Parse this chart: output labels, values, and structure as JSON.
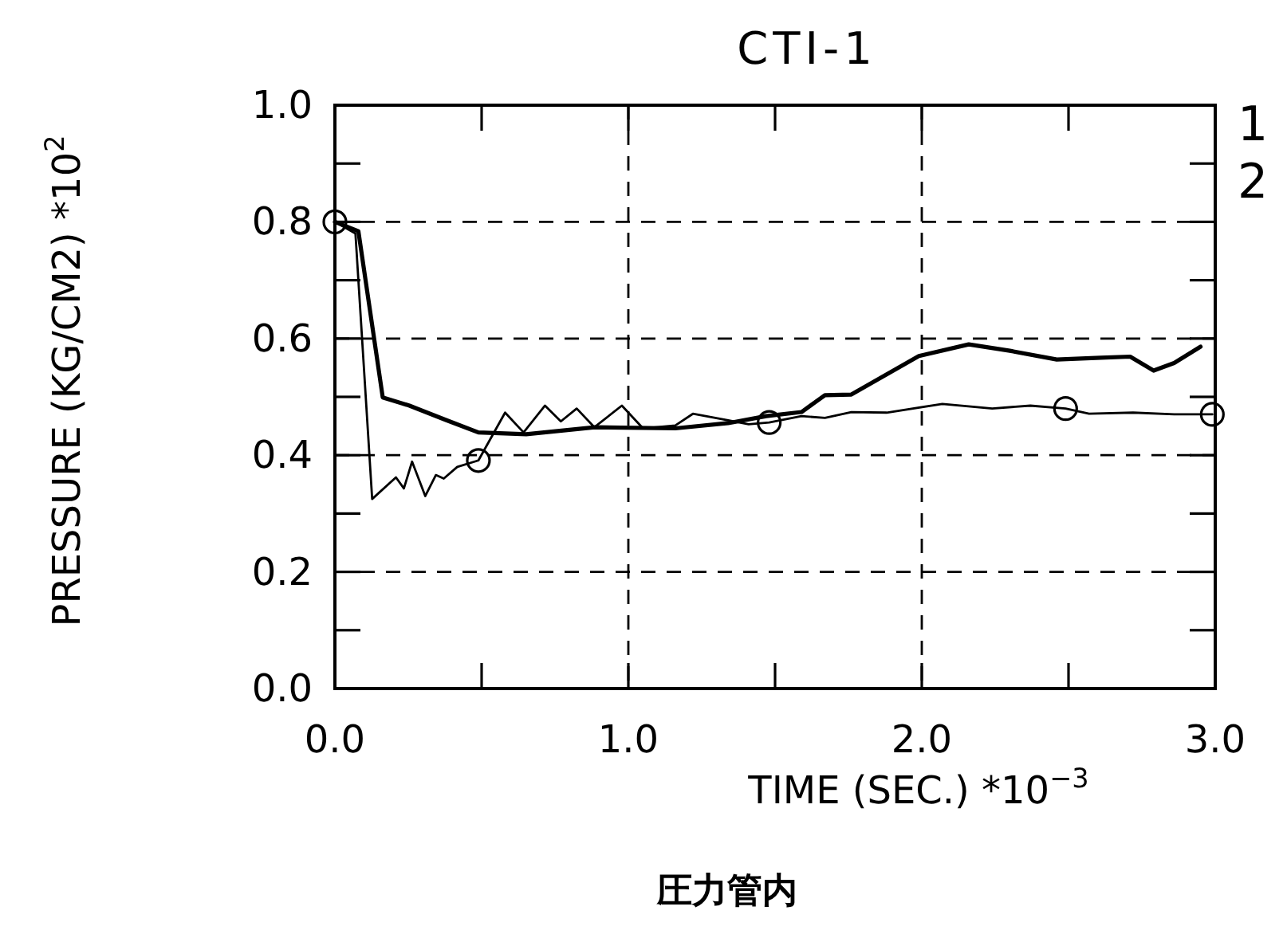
{
  "chart_data": {
    "type": "line",
    "title": "CTI-1",
    "xlabel": "TIME (SEC.) *10$^{−3}$",
    "ylabel": "PRESSURE (KG/CM2) *10$^{2}$",
    "annotations": [
      "圧力管内"
    ],
    "xlim": [
      0,
      3
    ],
    "ylim": [
      0,
      1
    ],
    "xticks": [
      {
        "value": 0,
        "label": "0.0"
      },
      {
        "value": 0.5,
        "label": null
      },
      {
        "value": 1,
        "label": "1.0"
      },
      {
        "value": 1.5,
        "label": null
      },
      {
        "value": 2,
        "label": "2.0"
      },
      {
        "value": 2.5,
        "label": null
      },
      {
        "value": 3,
        "label": "3.0"
      }
    ],
    "yticks": [
      {
        "value": 0,
        "label": "0.0"
      },
      {
        "value": 0.1,
        "label": null
      },
      {
        "value": 0.2,
        "label": "0.2"
      },
      {
        "value": 0.3,
        "label": null
      },
      {
        "value": 0.4,
        "label": "0.4"
      },
      {
        "value": 0.5,
        "label": null
      },
      {
        "value": 0.6,
        "label": "0.6"
      },
      {
        "value": 0.7,
        "label": null
      },
      {
        "value": 0.8,
        "label": "0.8"
      },
      {
        "value": 0.9,
        "label": null
      },
      {
        "value": 1,
        "label": "1.0"
      }
    ],
    "grid": true,
    "legend": "right",
    "line_style": "solid",
    "series": [
      {
        "name": "1",
        "color": "#000000",
        "x": [
          0,
          0.08,
          0.163,
          0.254,
          0.38,
          0.489,
          0.652,
          0.886,
          1.16,
          1.34,
          1.47,
          1.59,
          1.67,
          1.76,
          1.99,
          2.16,
          2.3,
          2.46,
          2.61,
          2.71,
          2.79,
          2.86,
          2.95
        ],
        "values": [
          0.8,
          0.784,
          0.499,
          0.485,
          0.46,
          0.439,
          0.436,
          0.448,
          0.446,
          0.455,
          0.467,
          0.474,
          0.503,
          0.504,
          0.57,
          0.59,
          0.579,
          0.564,
          0.567,
          0.569,
          0.545,
          0.558,
          0.586
        ]
      },
      {
        "name": "2",
        "color": "#000000",
        "x": [
          0,
          0.07,
          0.127,
          0.208,
          0.235,
          0.263,
          0.308,
          0.344,
          0.371,
          0.417,
          0.489,
          0.58,
          0.643,
          0.716,
          0.77,
          0.824,
          0.884,
          0.978,
          1.05,
          1.16,
          1.22,
          1.34,
          1.41,
          1.48,
          1.59,
          1.67,
          1.76,
          1.88,
          2.07,
          2.24,
          2.37,
          2.49,
          2.57,
          2.72,
          2.86,
          2.99
        ],
        "values": [
          0.8,
          0.78,
          0.325,
          0.362,
          0.343,
          0.389,
          0.33,
          0.366,
          0.36,
          0.38,
          0.391,
          0.473,
          0.439,
          0.485,
          0.458,
          0.48,
          0.448,
          0.485,
          0.446,
          0.451,
          0.471,
          0.46,
          0.453,
          0.456,
          0.467,
          0.464,
          0.474,
          0.473,
          0.488,
          0.48,
          0.485,
          0.48,
          0.471,
          0.473,
          0.47,
          0.47
        ]
      },
      {
        "type": "scatter",
        "marker": "circle",
        "color": "#000000",
        "x": [
          0,
          0.489,
          1.48,
          2.49,
          2.99
        ],
        "values": [
          0.8,
          0.391,
          0.456,
          0.48,
          0.47
        ]
      }
    ]
  }
}
